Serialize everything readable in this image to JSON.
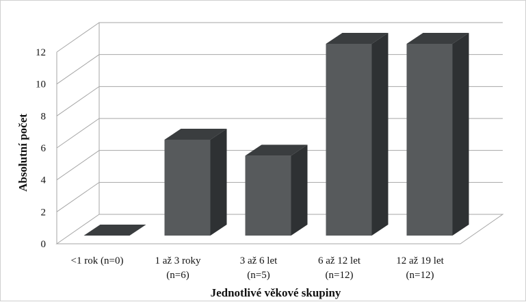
{
  "chart_data": {
    "type": "bar",
    "style": "3d-column",
    "categories": [
      {
        "line1": "<1 rok (n=0)",
        "line2": ""
      },
      {
        "line1": "1 až 3 roky",
        "line2": "(n=6)"
      },
      {
        "line1": "3 až 6 let",
        "line2": "(n=5)"
      },
      {
        "line1": "6 až 12 let",
        "line2": "(n=12)"
      },
      {
        "line1": "12 až 19 let",
        "line2": "(n=12)"
      }
    ],
    "values": [
      0,
      6,
      5,
      12,
      12
    ],
    "xlabel": "Jednotlivé věkové skupiny",
    "ylabel": "Absolutní počet",
    "ylim": [
      0,
      12
    ],
    "yticks": [
      "0",
      "2",
      "4",
      "6",
      "8",
      "10",
      "12"
    ],
    "grid": true,
    "colors": {
      "bar_front": "#575a5c",
      "bar_side": "#2e3133",
      "bar_top": "#3a3d3f",
      "grid": "#a6a6a6",
      "text": "#111111"
    }
  }
}
